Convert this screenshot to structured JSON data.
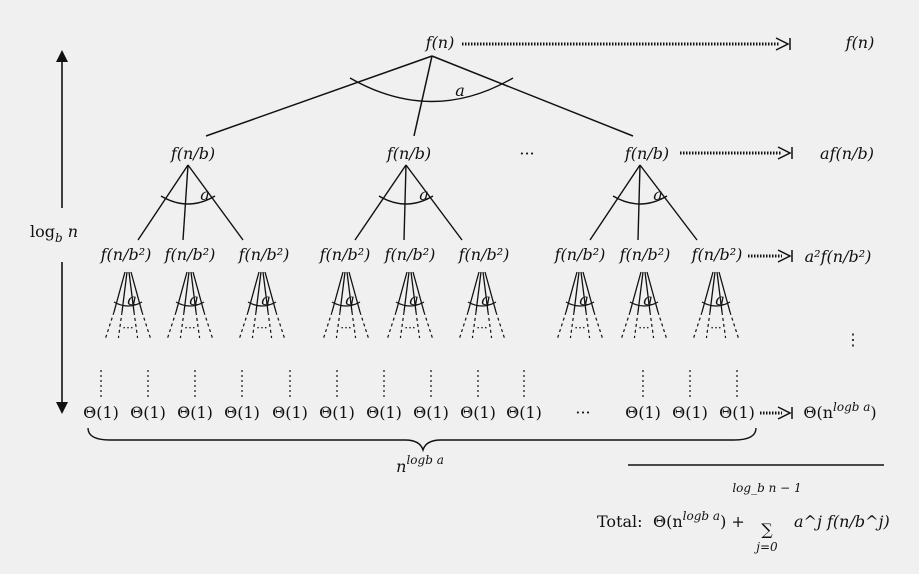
{
  "root": {
    "label": "f(n)",
    "row_sum": "f(n)",
    "branch": "a"
  },
  "level1": {
    "nodes": [
      "f(n/b)",
      "f(n/b)",
      "f(n/b)"
    ],
    "gap": "···",
    "row_sum": "af(n/b)",
    "branch": "a"
  },
  "level2": {
    "nodes": [
      "f(n/b²)",
      "f(n/b²)",
      "f(n/b²)"
    ],
    "inner_dots": "···",
    "row_sum": "a²f(n/b²)",
    "branch": "a"
  },
  "leaves": {
    "label": "Θ(1)",
    "gap": "···",
    "row_sum": "Θ(n^log_b a)",
    "brace_label": "n^log_b a"
  },
  "height_label": "log_b n",
  "vertical_dots": "⋮",
  "total": {
    "prefix": "Total:",
    "theta": "Θ(n^log_b a) +",
    "sum_upper": "log_b n − 1",
    "sum_lower": "j=0",
    "term": "a^j f(n/b^j)"
  }
}
